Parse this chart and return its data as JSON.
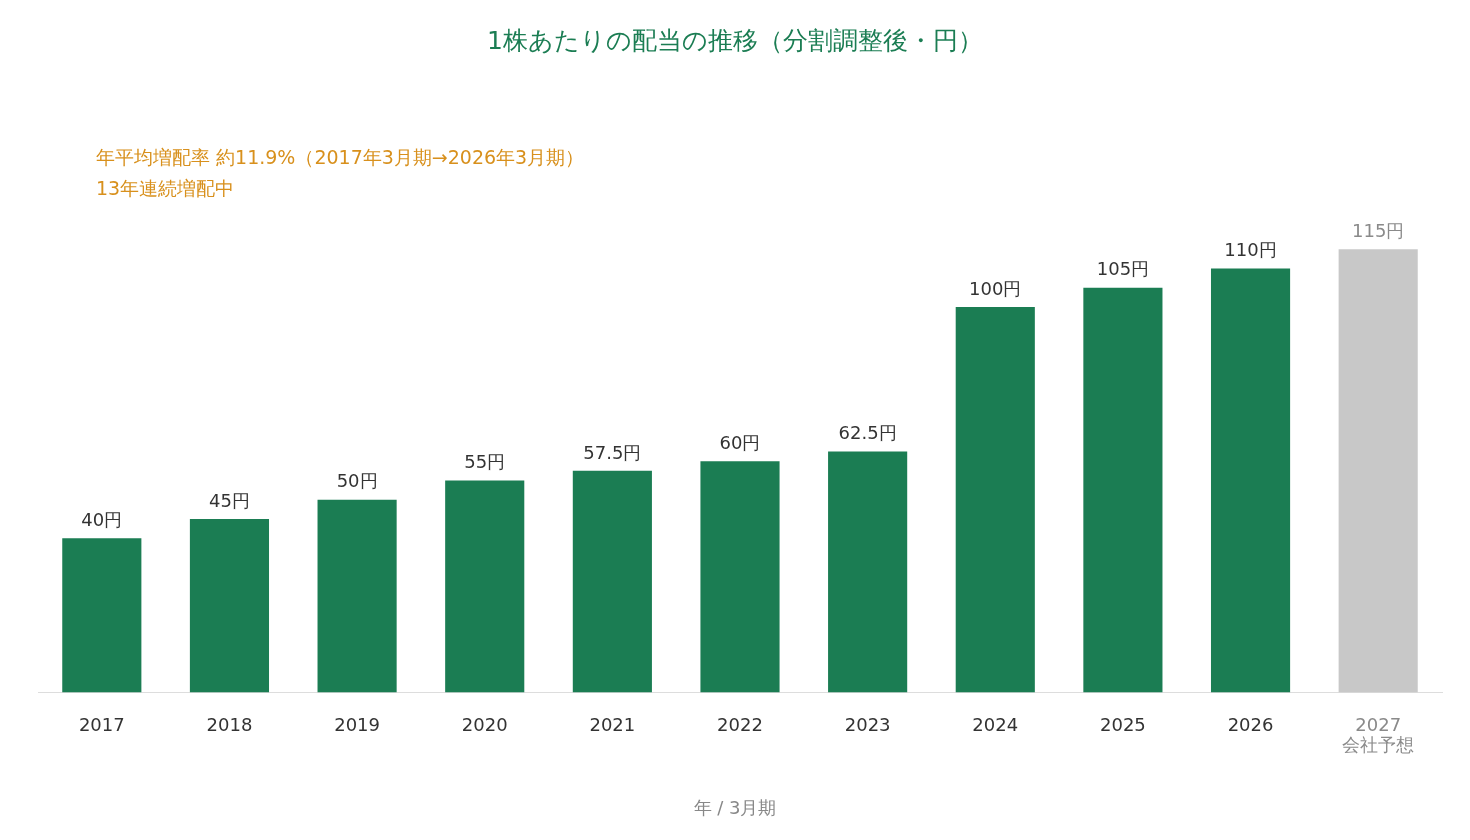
{
  "chart_data": {
    "type": "bar",
    "title": "1株あたりの配当の推移（分割調整後・円）",
    "xlabel": "年 / 3月期",
    "annotations": [
      "年平均増配率 約11.9%（2017年3月期→2026年3月期）",
      "13年連続増配中"
    ],
    "categories": [
      "2017",
      "2018",
      "2019",
      "2020",
      "2021",
      "2022",
      "2023",
      "2024",
      "2025",
      "2026",
      "2027\n会社予想"
    ],
    "values": [
      40,
      45,
      50,
      55,
      57.5,
      60,
      62.5,
      100,
      105,
      110,
      115
    ],
    "colors": [
      "#1b7d53",
      "#1b7d53",
      "#1b7d53",
      "#1b7d53",
      "#1b7d53",
      "#1b7d53",
      "#1b7d53",
      "#1b7d53",
      "#1b7d53",
      "#1b7d53",
      "#c8c8c8"
    ],
    "value_labels": [
      "40円",
      "45円",
      "50円",
      "55円",
      "57.5円",
      "60円",
      "62.5円",
      "100円",
      "105円",
      "110円",
      "115円"
    ],
    "grid": false,
    "legend": false
  }
}
